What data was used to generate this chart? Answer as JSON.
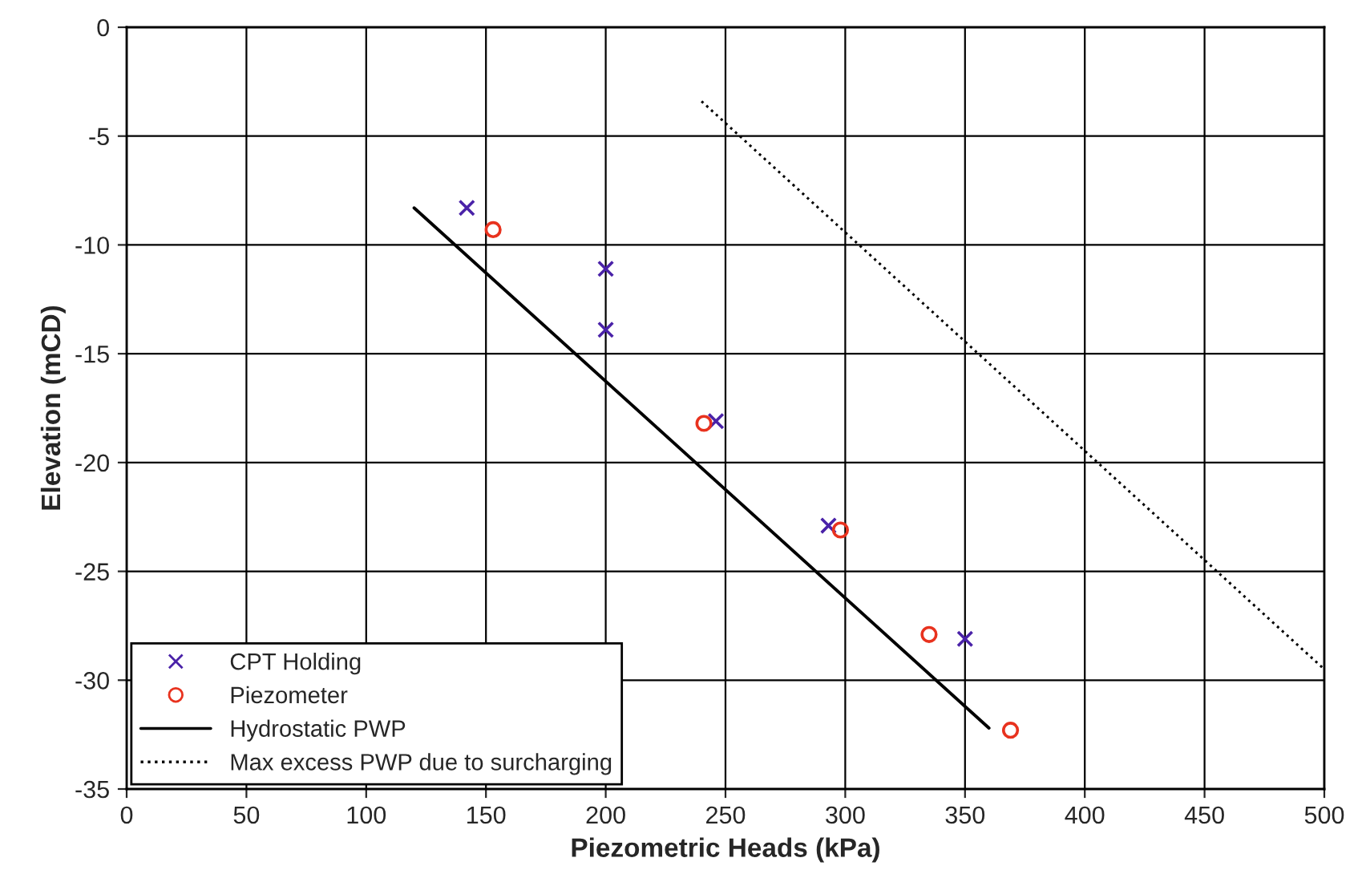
{
  "chart_data": {
    "type": "scatter",
    "xlabel": "Piezometric Heads (kPa)",
    "ylabel": "Elevation (mCD)",
    "xlim": [
      0,
      500
    ],
    "xticks": [
      0,
      50,
      100,
      150,
      200,
      250,
      300,
      350,
      400,
      450,
      500
    ],
    "ylim": [
      -35,
      0
    ],
    "yticks": [
      -35,
      -30,
      -25,
      -20,
      -15,
      -10,
      -5,
      0
    ],
    "grid": true,
    "legend": "bottom left",
    "series": [
      {
        "name": "CPT Holding",
        "marker": "cross",
        "color": "#4a22a8",
        "x": [
          142,
          200,
          200,
          246,
          293,
          350
        ],
        "values": [
          -8.3,
          -11.1,
          -13.9,
          -18.1,
          -22.9,
          -28.1
        ]
      },
      {
        "name": "Piezometer",
        "marker": "circle",
        "color": "#e8321e",
        "x": [
          153,
          241,
          298,
          335,
          369
        ],
        "values": [
          -9.3,
          -18.2,
          -23.1,
          -27.9,
          -32.3
        ]
      },
      {
        "name": "Hydrostatic PWP",
        "type": "line",
        "line_style": "solid",
        "color": "#000000",
        "x": [
          120,
          360
        ],
        "values": [
          -8.3,
          -32.2
        ]
      },
      {
        "name": "Max excess PWP due to surcharging",
        "type": "line",
        "line_style": "dotted",
        "color": "#000000",
        "x": [
          240,
          500
        ],
        "values": [
          -3.4,
          -29.5
        ]
      }
    ]
  }
}
